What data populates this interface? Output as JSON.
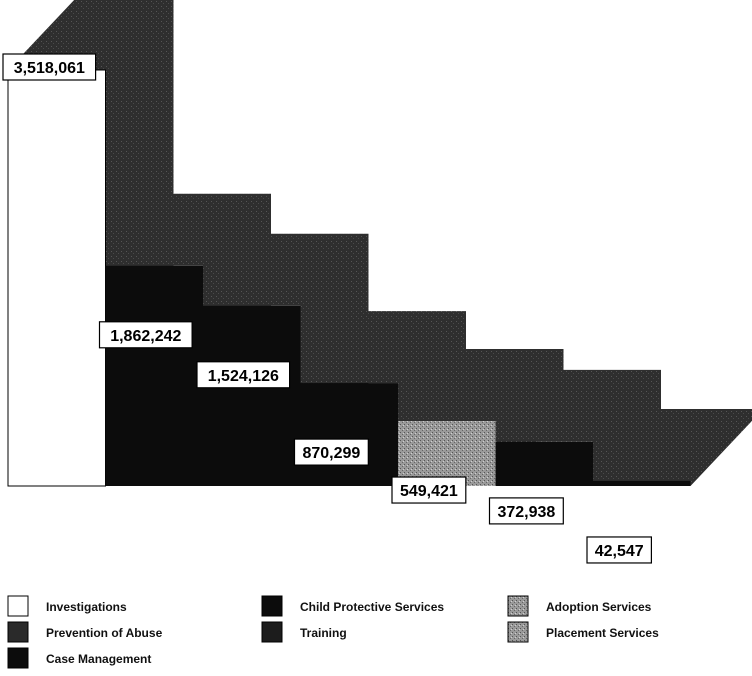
{
  "chart_data": {
    "type": "bar",
    "style": "3d-stepped",
    "categories": [
      "Investigations",
      "Child Protective Services",
      "Prevention of Abuse",
      "Training",
      "Placement Services",
      "Case Management",
      "Adoption Services"
    ],
    "values": [
      3518061,
      1862242,
      1524126,
      870299,
      549421,
      372938,
      42547
    ],
    "value_labels": [
      "3,518,061",
      "1,862,242",
      "1,524,126",
      "870,299",
      "549,421",
      "372,938",
      "42,547"
    ],
    "colors": [
      "#ffffff",
      "#0c0c0c",
      "#0c0c0c",
      "#0c0c0c",
      "#0c0c0c",
      "#0c0c0c",
      "#0c0c0c"
    ],
    "textures": [
      "none",
      "none",
      "none",
      "none",
      "stipple",
      "none",
      "none"
    ],
    "bar_order": [
      0,
      1,
      2,
      3,
      4,
      5,
      6
    ],
    "legend_order": [
      0,
      1,
      6,
      2,
      3,
      4,
      5
    ],
    "legend_colors": [
      "#ffffff",
      "#0c0c0c",
      "#2a2a2a",
      "#1c1c1c",
      "#8a8a8a",
      "#0c0c0c",
      "#6a6a6a"
    ],
    "legend_textures": [
      "none",
      "none",
      "none",
      "none",
      "stipple",
      "none",
      "stipple"
    ],
    "depth_color": "#2e2e2e",
    "legend_position": "bottom",
    "grid": false,
    "title": "",
    "xlabel": "",
    "ylabel": ""
  }
}
